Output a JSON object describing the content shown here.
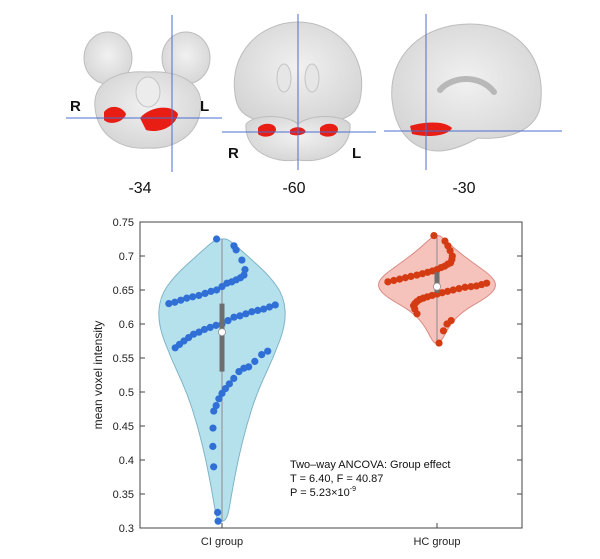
{
  "brain_panel": {
    "slices": [
      {
        "view": "axial",
        "label": "-34",
        "left_label": "R",
        "right_label": "L"
      },
      {
        "view": "coronal",
        "label": "-60",
        "left_label": "R",
        "right_label": "L"
      },
      {
        "view": "sagittal",
        "label": "-30"
      }
    ],
    "colors": {
      "tissue": "#d9d9d9",
      "tissue_edge": "#bdbdbd",
      "crosshair": "#4a6fd1",
      "cluster": "#e81e14"
    }
  },
  "chart_data": {
    "type": "violin",
    "categories": [
      "CI group",
      "HC group"
    ],
    "ylabel": "mean voxel intensity",
    "xlabel": "",
    "ylim": [
      0.3,
      0.75
    ],
    "yticks": [
      "0.3",
      "0.35",
      "0.4",
      "0.45",
      "0.5",
      "0.55",
      "0.6",
      "0.65",
      "0.7",
      "0.75"
    ],
    "grid": false,
    "series": [
      {
        "category": "CI group",
        "fill": "#a8dcea",
        "edge": "#7fb4c6",
        "point_color": "#2f6fd6",
        "median": 0.588,
        "q1": 0.53,
        "q3": 0.63,
        "min": 0.31,
        "max": 0.725,
        "points": [
          0.725,
          0.715,
          0.709,
          0.694,
          0.68,
          0.672,
          0.668,
          0.665,
          0.662,
          0.66,
          0.655,
          0.65,
          0.648,
          0.645,
          0.642,
          0.64,
          0.638,
          0.635,
          0.632,
          0.63,
          0.628,
          0.625,
          0.622,
          0.62,
          0.618,
          0.615,
          0.612,
          0.61,
          0.605,
          0.6,
          0.598,
          0.595,
          0.592,
          0.588,
          0.585,
          0.58,
          0.575,
          0.57,
          0.565,
          0.56,
          0.555,
          0.545,
          0.537,
          0.535,
          0.53,
          0.52,
          0.512,
          0.505,
          0.498,
          0.49,
          0.48,
          0.472,
          0.447,
          0.42,
          0.39,
          0.323,
          0.31
        ],
        "density_profile": [
          [
            0.31,
            0.08
          ],
          [
            0.35,
            0.15
          ],
          [
            0.4,
            0.25
          ],
          [
            0.45,
            0.38
          ],
          [
            0.5,
            0.55
          ],
          [
            0.55,
            0.8
          ],
          [
            0.6,
            1.0
          ],
          [
            0.64,
            0.97
          ],
          [
            0.67,
            0.75
          ],
          [
            0.7,
            0.4
          ],
          [
            0.725,
            0.1
          ]
        ]
      },
      {
        "category": "HC group",
        "fill": "#f4b7b0",
        "edge": "#d98a82",
        "point_color": "#d43b12",
        "median": 0.655,
        "q1": 0.646,
        "q3": 0.676,
        "min": 0.572,
        "max": 0.73,
        "points": [
          0.73,
          0.722,
          0.715,
          0.708,
          0.7,
          0.695,
          0.69,
          0.688,
          0.685,
          0.683,
          0.68,
          0.678,
          0.676,
          0.674,
          0.672,
          0.67,
          0.668,
          0.666,
          0.664,
          0.662,
          0.66,
          0.658,
          0.656,
          0.655,
          0.654,
          0.652,
          0.65,
          0.648,
          0.646,
          0.644,
          0.642,
          0.64,
          0.638,
          0.636,
          0.633,
          0.63,
          0.627,
          0.622,
          0.615,
          0.605,
          0.6,
          0.59,
          0.572
        ],
        "density_profile": [
          [
            0.572,
            0.06
          ],
          [
            0.6,
            0.22
          ],
          [
            0.62,
            0.45
          ],
          [
            0.64,
            0.85
          ],
          [
            0.655,
            1.0
          ],
          [
            0.67,
            0.92
          ],
          [
            0.69,
            0.6
          ],
          [
            0.71,
            0.3
          ],
          [
            0.73,
            0.06
          ]
        ]
      }
    ],
    "annotations": [
      "Two–way ANCOVA: Group effect",
      "T = 6.40, F = 40.87",
      "P = 5.23×10",
      "-9"
    ]
  }
}
